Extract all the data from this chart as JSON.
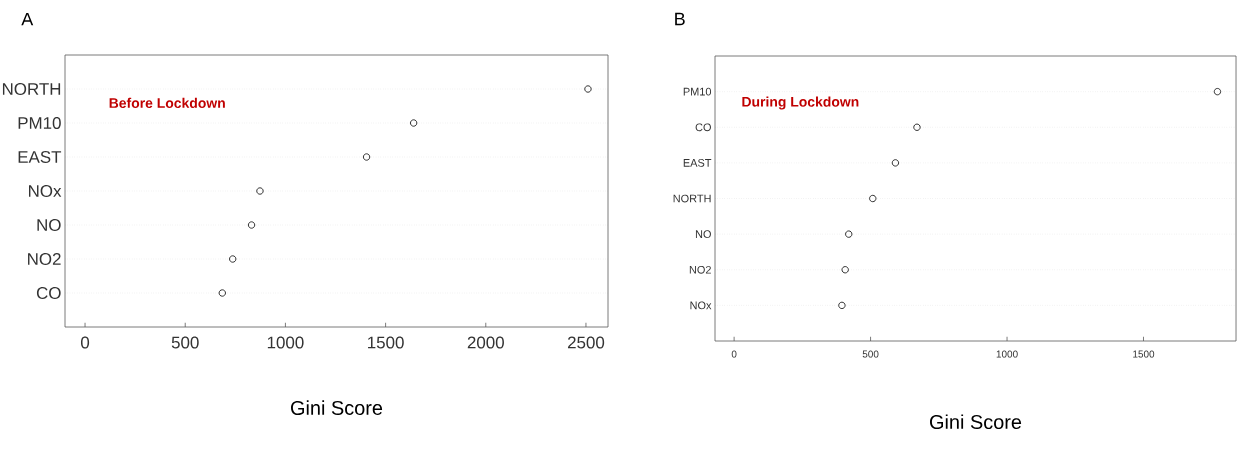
{
  "chart_data": [
    {
      "type": "scatter",
      "title": "A",
      "orientation": "horizontal",
      "categories": [
        "NORTH",
        "PM10",
        "EAST",
        "NOx",
        "NO",
        "NO2",
        "CO"
      ],
      "series": [
        {
          "color": "#000000",
          "values": [
            2510,
            1640,
            1405,
            873,
            831,
            737,
            685
          ]
        }
      ],
      "xlim": [
        -100,
        2610
      ],
      "xticks": [
        0,
        500,
        1000,
        1500,
        2000,
        2500
      ],
      "xlabel": "Gini Score",
      "annotations": [
        "**Before Lockdown**"
      ],
      "grid": "y",
      "marker": "circle"
    },
    {
      "type": "scatter",
      "title": "B",
      "orientation": "horizontal",
      "categories": [
        "PM10",
        "CO",
        "EAST",
        "NORTH",
        "NO",
        "NO2",
        "NOx"
      ],
      "series": [
        {
          "color": "#000000",
          "values": [
            1771,
            670,
            591,
            508,
            420,
            407,
            395
          ]
        }
      ],
      "xlim": [
        -70,
        1839
      ],
      "xticks": [
        0,
        500,
        1000,
        1500
      ],
      "xlabel": "Gini Score",
      "annotations": [
        "**During Lockdown**"
      ],
      "grid": "y",
      "marker": "circle"
    }
  ]
}
